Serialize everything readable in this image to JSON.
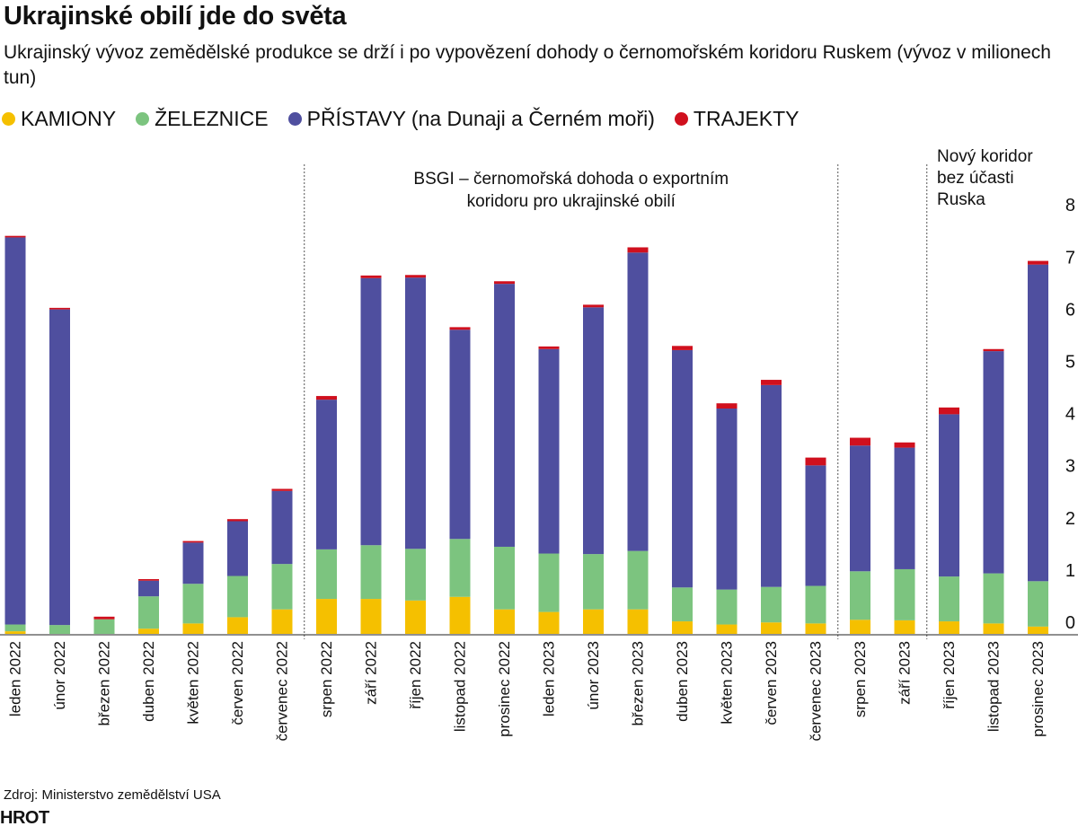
{
  "title": "Ukrajinské obilí jde do světa",
  "subtitle": "Ukrajinský vývoz zemědělské produkce se drží i po vypovězení dohody o černomořském koridoru Ruskem (vývoz v milionech tun)",
  "legend": [
    {
      "label": "KAMIONY",
      "color": "#f5c000"
    },
    {
      "label": "ŽELEZNICE",
      "color": "#7cc47f"
    },
    {
      "label": "PŘÍSTAVY (na Dunaji a Černém moři)",
      "color": "#4f4f9f"
    },
    {
      "label": "TRAJEKTY",
      "color": "#d0101e"
    }
  ],
  "source": "Zdroj: Ministerstvo zemědělství USA",
  "logo": "HROT",
  "chart_data": {
    "type": "bar",
    "stacked": true,
    "categories": [
      "leden 2022",
      "únor 2022",
      "březen 2022",
      "duben 2022",
      "květen 2022",
      "červen 2022",
      "červenec 2022",
      "srpen 2022",
      "září 2022",
      "říjen 2022",
      "listopad 2022",
      "prosinec 2022",
      "leden 2023",
      "únor 2023",
      "březen 2023",
      "duben 2023",
      "květen 2023",
      "červen 2023",
      "červenec 2023",
      "srpen 2023",
      "září 2023",
      "říjen 2023",
      "listopad 2023",
      "prosinec 2023"
    ],
    "series": [
      {
        "name": "KAMIONY",
        "color": "#f5c000",
        "values": [
          0.05,
          0.0,
          0.0,
          0.1,
          0.2,
          0.32,
          0.47,
          0.67,
          0.67,
          0.64,
          0.71,
          0.47,
          0.42,
          0.47,
          0.47,
          0.24,
          0.18,
          0.22,
          0.2,
          0.27,
          0.26,
          0.24,
          0.2,
          0.14
        ]
      },
      {
        "name": "ŽELEZNICE",
        "color": "#7cc47f",
        "values": [
          0.13,
          0.17,
          0.28,
          0.62,
          0.76,
          0.79,
          0.87,
          0.95,
          1.03,
          0.99,
          1.11,
          1.2,
          1.12,
          1.06,
          1.12,
          0.65,
          0.67,
          0.68,
          0.72,
          0.93,
          0.98,
          0.86,
          0.96,
          0.87
        ]
      },
      {
        "name": "PŘÍSTAVY (na Dunaji a Černém moři)",
        "color": "#4f4f9f",
        "values": [
          7.42,
          6.05,
          0.0,
          0.3,
          0.79,
          1.05,
          1.4,
          2.87,
          5.12,
          5.2,
          4.01,
          5.04,
          3.92,
          4.73,
          5.72,
          4.55,
          3.47,
          3.87,
          2.31,
          2.41,
          2.33,
          3.11,
          4.26,
          6.07
        ]
      },
      {
        "name": "TRAJEKTY",
        "color": "#d0101e",
        "values": [
          0.03,
          0.03,
          0.05,
          0.03,
          0.03,
          0.04,
          0.04,
          0.07,
          0.05,
          0.05,
          0.05,
          0.05,
          0.05,
          0.05,
          0.1,
          0.08,
          0.1,
          0.1,
          0.15,
          0.15,
          0.1,
          0.13,
          0.04,
          0.07
        ]
      }
    ],
    "ylim": [
      0,
      8
    ],
    "yticks": [
      0,
      1,
      2,
      3,
      4,
      5,
      6,
      7,
      8
    ],
    "grid": false,
    "legend_position": "top-left",
    "annotations": [
      {
        "text_lines": [
          "BSGI – černomořská dohoda o exportním",
          "koridoru pro ukrajinské obilí"
        ],
        "from_category": 7,
        "to_category": 18
      },
      {
        "text_lines": [
          "Nový koridor",
          "bez účasti",
          "Ruska"
        ],
        "from_category": 21,
        "to_category": 23
      }
    ],
    "dividers_after_category": [
      6,
      18,
      20
    ]
  }
}
